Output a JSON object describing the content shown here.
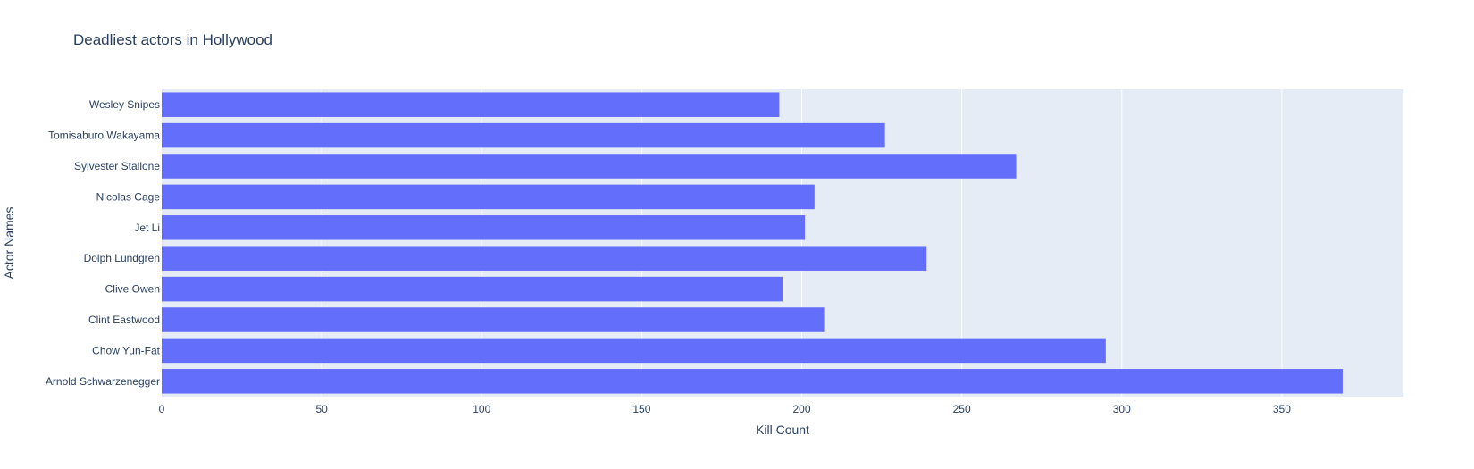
{
  "chart_data": {
    "type": "bar",
    "orientation": "horizontal",
    "title": "Deadliest actors in Hollywood",
    "xlabel": "Kill Count",
    "ylabel": "Actor Names",
    "xlim": [
      0,
      388
    ],
    "xticks": [
      0,
      50,
      100,
      150,
      200,
      250,
      300,
      350
    ],
    "categories": [
      "Arnold Schwarzenegger",
      "Chow Yun-Fat",
      "Clint Eastwood",
      "Clive Owen",
      "Dolph Lundgren",
      "Jet Li",
      "Nicolas Cage",
      "Sylvester Stallone",
      "Tomisaburo Wakayama",
      "Wesley Snipes"
    ],
    "values": [
      369,
      295,
      207,
      194,
      239,
      201,
      204,
      267,
      226,
      193
    ],
    "grid": true,
    "bar_color": "#636efa",
    "plot_background": "#e5ecf6"
  }
}
